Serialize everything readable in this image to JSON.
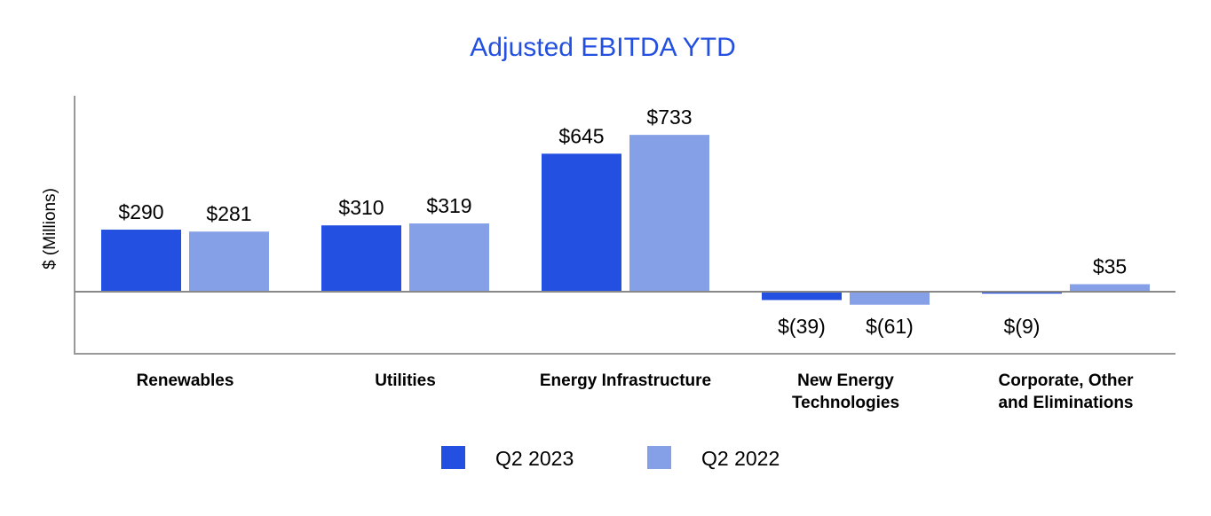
{
  "chart_data": {
    "type": "bar",
    "title": "Adjusted EBITDA YTD",
    "ylabel": "$ (Millions)",
    "xlabel": "",
    "categories": [
      [
        "Renewables"
      ],
      [
        "Utilities"
      ],
      [
        "Energy Infrastructure"
      ],
      [
        "New Energy",
        "Technologies"
      ],
      [
        "Corporate, Other",
        "and Eliminations"
      ]
    ],
    "series": [
      {
        "name": "Q2 2023",
        "color": "#2350e0",
        "values": [
          290,
          310,
          645,
          -39,
          -9
        ],
        "labels": [
          "$290",
          "$310",
          "$645",
          "$(39)",
          "$(9)"
        ]
      },
      {
        "name": "Q2 2022",
        "color": "#86a0e8",
        "values": [
          281,
          319,
          733,
          -61,
          35
        ],
        "labels": [
          "$281",
          "$319",
          "$733",
          "$(61)",
          "$35"
        ]
      }
    ],
    "ylim": [
      -250,
      800
    ],
    "grid": false,
    "legend_position": "bottom-center",
    "title_color": "#2350e0"
  }
}
